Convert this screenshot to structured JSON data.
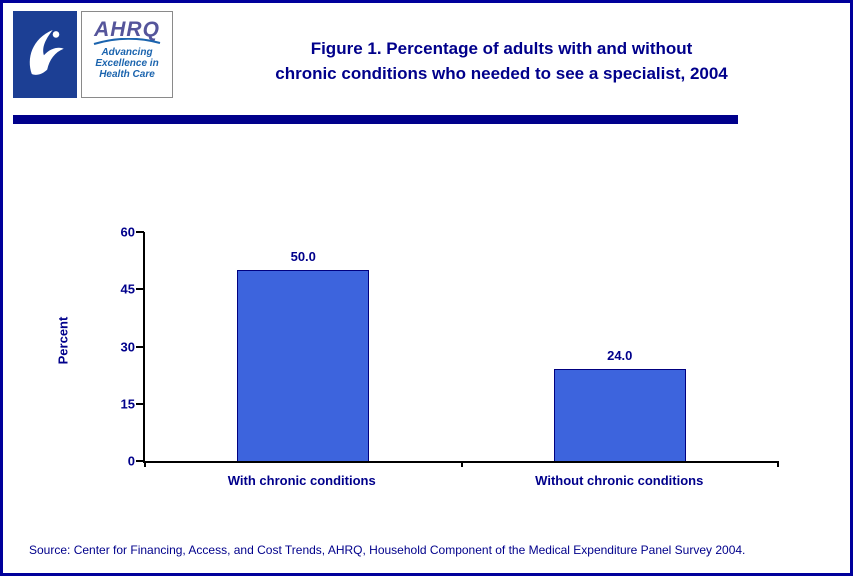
{
  "page": {
    "title_line1": "Figure 1. Percentage of adults with and without",
    "title_line2": "chronic conditions who needed to see a specialist, 2004",
    "source": "Source: Center for Financing, Access, and Cost Trends, AHRQ, Household Component of the Medical Expenditure Panel Survey 2004."
  },
  "logos": {
    "hhs_name": "HHS seal",
    "ahrq_name": "AHRQ",
    "tagline_line1": "Advancing",
    "tagline_line2": "Excellence in",
    "tagline_line3": "Health Care"
  },
  "colors": {
    "title_navy": "#00008B",
    "bar_fill": "#3D64DD",
    "bar_border": "#000080",
    "hhs_blue": "#1C3F94",
    "ahrq_purple": "#55559B",
    "tagline_blue": "#1B64AE"
  },
  "chart_data": {
    "type": "bar",
    "categories": [
      "With chronic conditions",
      "Without chronic conditions"
    ],
    "values": [
      50.0,
      24.0
    ],
    "value_labels": [
      "50.0",
      "24.0"
    ],
    "title": "Figure 1. Percentage of adults with and without chronic conditions who needed to see a specialist, 2004",
    "xlabel": "",
    "ylabel": "Percent",
    "ylim": [
      0,
      60
    ],
    "yticks": [
      0,
      15,
      30,
      45,
      60
    ],
    "grid": false,
    "legend": "none"
  }
}
